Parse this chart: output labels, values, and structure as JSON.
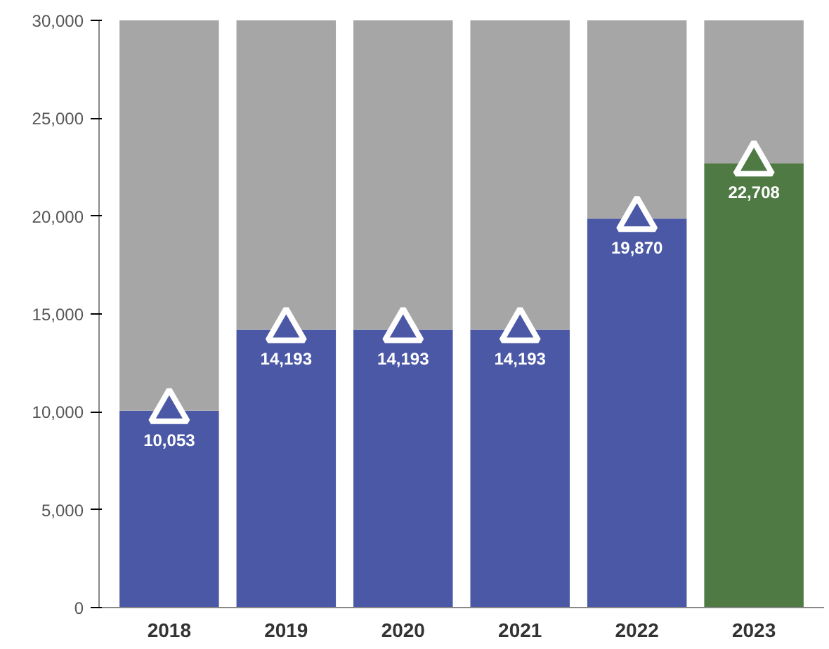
{
  "chart_data": {
    "type": "bar",
    "stacked": true,
    "categories": [
      "2018",
      "2019",
      "2020",
      "2021",
      "2022",
      "2023"
    ],
    "series": [
      {
        "values": [
          10053,
          14193,
          14193,
          14193,
          19870,
          22708
        ],
        "colors": [
          "#4b58a6",
          "#4b58a6",
          "#4b58a6",
          "#4b58a6",
          "#4b58a6",
          "#4f7a44"
        ],
        "value_labels": [
          "10,053",
          "14,193",
          "14,193",
          "14,193",
          "19,870",
          "22,708"
        ]
      },
      {
        "values": [
          19947,
          15807,
          15807,
          15807,
          10130,
          7292
        ],
        "color": "#a6a6a6"
      },
      {
        "type": "scatter",
        "values": [
          10053,
          14193,
          14193,
          14193,
          19870,
          22708
        ],
        "colors": [
          "#4b58a6",
          "#4b58a6",
          "#4b58a6",
          "#4b58a6",
          "#4b58a6",
          "#4f7a44"
        ]
      }
    ],
    "marker": "triangle",
    "ylim": [
      0,
      30000
    ],
    "yticks": [
      0,
      {
        "value": 5000,
        "label": "5,000"
      },
      {
        "value": 10000,
        "label": "10,000"
      },
      {
        "value": 15000,
        "label": "15,000"
      },
      {
        "value": 20000,
        "label": "20,000"
      },
      {
        "value": 25000,
        "label": "25,000"
      },
      {
        "value": 30000,
        "label": "30,000"
      }
    ],
    "grid": false
  }
}
